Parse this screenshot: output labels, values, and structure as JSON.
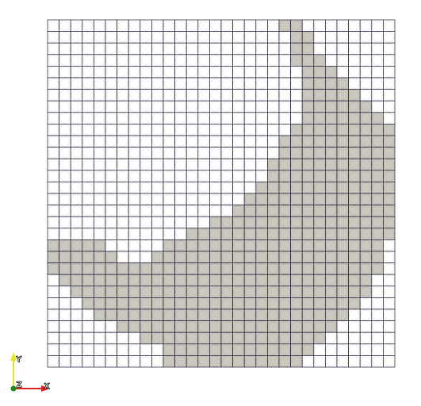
{
  "mesh": {
    "cols": 30,
    "rows": 30,
    "colors": {
      "background": "#ffffff",
      "cell_empty": "#ffffff",
      "cell_filled": "#cbc8c0",
      "edge": "#1a1a2e"
    },
    "filled_rows_from_top": [
      [
        [
          20,
          21
        ]
      ],
      [
        [
          21,
          22
        ]
      ],
      [
        [
          21,
          22
        ]
      ],
      [
        [
          21,
          23
        ]
      ],
      [
        [
          22,
          24
        ]
      ],
      [
        [
          22,
          25
        ]
      ],
      [
        [
          22,
          26
        ]
      ],
      [
        [
          22,
          27
        ]
      ],
      [
        [
          22,
          28
        ]
      ],
      [
        [
          21,
          29
        ]
      ],
      [
        [
          20,
          29
        ]
      ],
      [
        [
          20,
          29
        ]
      ],
      [
        [
          19,
          29
        ]
      ],
      [
        [
          19,
          29
        ]
      ],
      [
        [
          18,
          29
        ]
      ],
      [
        [
          17,
          29
        ]
      ],
      [
        [
          16,
          29
        ]
      ],
      [
        [
          14,
          29
        ]
      ],
      [
        [
          12,
          29
        ]
      ],
      [
        [
          0,
          4
        ],
        [
          10,
          28
        ]
      ],
      [
        [
          0,
          5
        ],
        [
          9,
          28
        ]
      ],
      [
        [
          0,
          28
        ]
      ],
      [
        [
          1,
          27
        ]
      ],
      [
        [
          2,
          27
        ]
      ],
      [
        [
          3,
          26
        ]
      ],
      [
        [
          4,
          25
        ]
      ],
      [
        [
          6,
          24
        ]
      ],
      [
        [
          8,
          23
        ]
      ],
      [
        [
          10,
          22
        ]
      ],
      [
        [
          10,
          21
        ]
      ]
    ]
  },
  "orientation_axes": {
    "x_label": "X",
    "y_label": "Y",
    "z_label": "Z",
    "x_color": "#e2231a",
    "y_color": "#e6e61a",
    "z_color": "#1a8c1a"
  }
}
